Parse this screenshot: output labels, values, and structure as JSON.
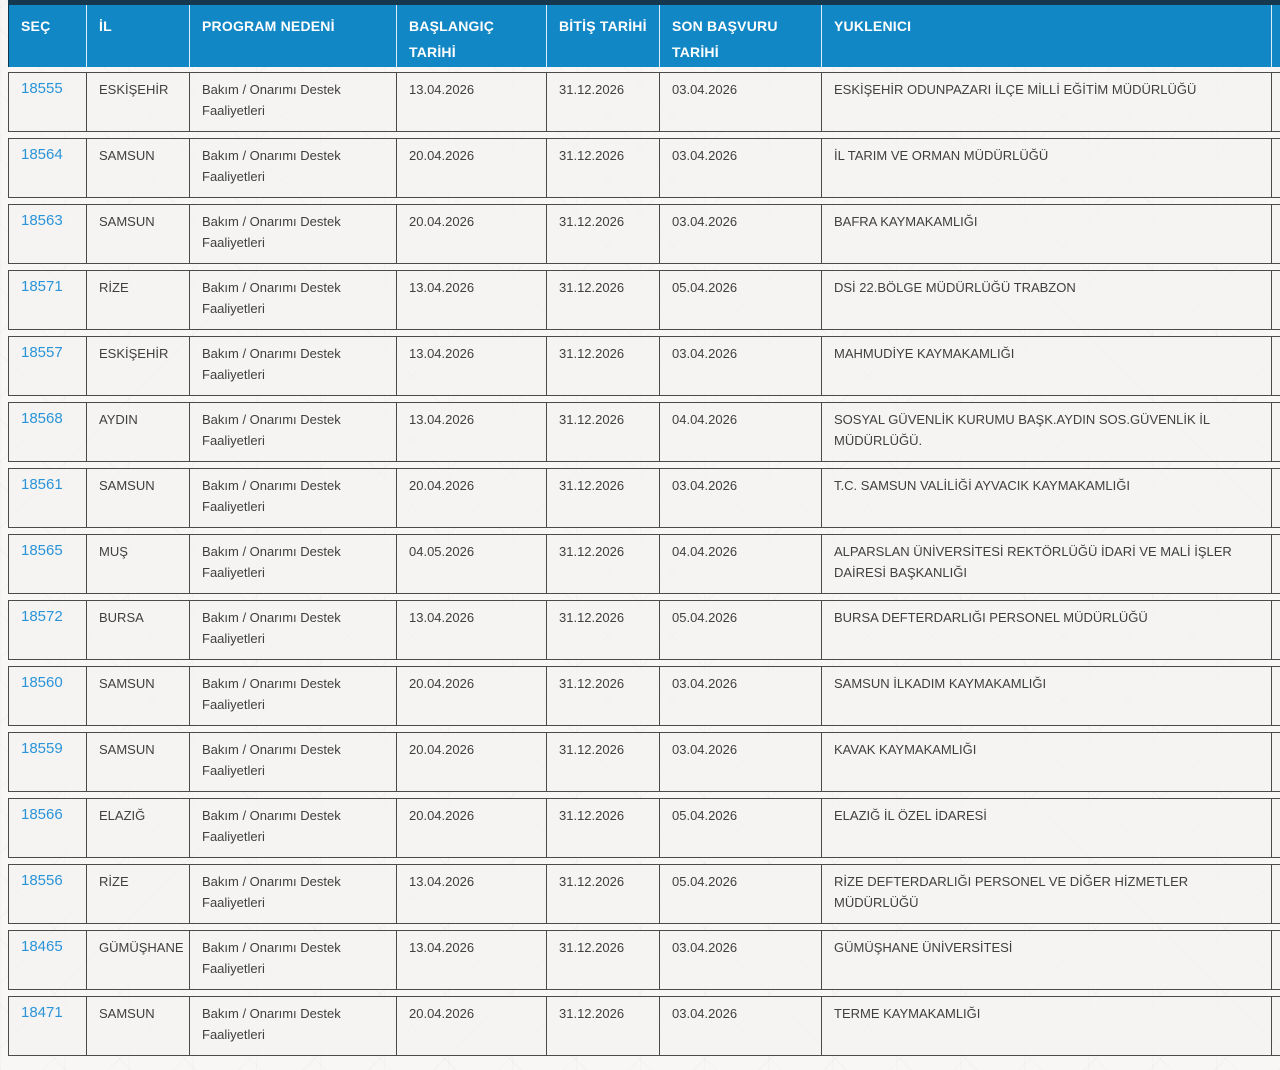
{
  "colors": {
    "header_bg": "#1287C5",
    "header_top_border": "#16384E",
    "header_text": "#FFFFFF",
    "row_border": "#4A4A4A",
    "row_bg": "#F4F3F1",
    "link_blue": "#2B94D8",
    "body_text": "#3F3F3F"
  },
  "table": {
    "columns": [
      {
        "key": "sec",
        "label": "SEÇ"
      },
      {
        "key": "il",
        "label": "İL"
      },
      {
        "key": "program",
        "label": "PROGRAM NEDENİ"
      },
      {
        "key": "baslangic",
        "label": "BAŞLANGIÇ TARİHİ"
      },
      {
        "key": "bitis",
        "label": "BİTİŞ TARİHİ"
      },
      {
        "key": "son_basvuru",
        "label": "SON BAŞVURU TARİHİ"
      },
      {
        "key": "yuklenici",
        "label": "YUKLENICI"
      }
    ],
    "rows": [
      {
        "id": "18555",
        "il": "ESKİŞEHİR",
        "program": "Bakım / Onarımı Destek Faaliyetleri",
        "baslangic": "13.04.2026",
        "bitis": "31.12.2026",
        "son_basvuru": "03.04.2026",
        "yuklenici": "ESKİŞEHİR ODUNPAZARI İLÇE MİLLİ EĞİTİM MÜDÜRLÜĞÜ"
      },
      {
        "id": "18564",
        "il": "SAMSUN",
        "program": "Bakım / Onarımı Destek Faaliyetleri",
        "baslangic": "20.04.2026",
        "bitis": "31.12.2026",
        "son_basvuru": "03.04.2026",
        "yuklenici": "İL TARIM VE ORMAN MÜDÜRLÜĞÜ"
      },
      {
        "id": "18563",
        "il": "SAMSUN",
        "program": "Bakım / Onarımı Destek Faaliyetleri",
        "baslangic": "20.04.2026",
        "bitis": "31.12.2026",
        "son_basvuru": "03.04.2026",
        "yuklenici": "BAFRA KAYMAKAMLIĞI"
      },
      {
        "id": "18571",
        "il": "RİZE",
        "program": "Bakım / Onarımı Destek Faaliyetleri",
        "baslangic": "13.04.2026",
        "bitis": "31.12.2026",
        "son_basvuru": "05.04.2026",
        "yuklenici": "DSİ 22.BÖLGE MÜDÜRLÜĞÜ TRABZON"
      },
      {
        "id": "18557",
        "il": "ESKİŞEHİR",
        "program": "Bakım / Onarımı Destek Faaliyetleri",
        "baslangic": "13.04.2026",
        "bitis": "31.12.2026",
        "son_basvuru": "03.04.2026",
        "yuklenici": "MAHMUDİYE KAYMAKAMLIĞI"
      },
      {
        "id": "18568",
        "il": "AYDIN",
        "program": "Bakım / Onarımı Destek Faaliyetleri",
        "baslangic": "13.04.2026",
        "bitis": "31.12.2026",
        "son_basvuru": "04.04.2026",
        "yuklenici": "SOSYAL GÜVENLİK KURUMU BAŞK.AYDIN SOS.GÜVENLİK İL MÜDÜRLÜĞÜ."
      },
      {
        "id": "18561",
        "il": "SAMSUN",
        "program": "Bakım / Onarımı Destek Faaliyetleri",
        "baslangic": "20.04.2026",
        "bitis": "31.12.2026",
        "son_basvuru": "03.04.2026",
        "yuklenici": "T.C. SAMSUN VALİLİĞİ AYVACIK KAYMAKAMLIĞI"
      },
      {
        "id": "18565",
        "il": "MUŞ",
        "program": "Bakım / Onarımı Destek Faaliyetleri",
        "baslangic": "04.05.2026",
        "bitis": "31.12.2026",
        "son_basvuru": "04.04.2026",
        "yuklenici": "ALPARSLAN ÜNİVERSİTESİ REKTÖRLÜĞÜ İDARİ VE MALİ İŞLER DAİRESİ BAŞKANLIĞI"
      },
      {
        "id": "18572",
        "il": "BURSA",
        "program": "Bakım / Onarımı Destek Faaliyetleri",
        "baslangic": "13.04.2026",
        "bitis": "31.12.2026",
        "son_basvuru": "05.04.2026",
        "yuklenici": "BURSA DEFTERDARLIĞI PERSONEL MÜDÜRLÜĞÜ"
      },
      {
        "id": "18560",
        "il": "SAMSUN",
        "program": "Bakım / Onarımı Destek Faaliyetleri",
        "baslangic": "20.04.2026",
        "bitis": "31.12.2026",
        "son_basvuru": "03.04.2026",
        "yuklenici": "SAMSUN İLKADIM KAYMAKAMLIĞI"
      },
      {
        "id": "18559",
        "il": "SAMSUN",
        "program": "Bakım / Onarımı Destek Faaliyetleri",
        "baslangic": "20.04.2026",
        "bitis": "31.12.2026",
        "son_basvuru": "03.04.2026",
        "yuklenici": "KAVAK KAYMAKAMLIĞI"
      },
      {
        "id": "18566",
        "il": "ELAZIĞ",
        "program": "Bakım / Onarımı Destek Faaliyetleri",
        "baslangic": "20.04.2026",
        "bitis": "31.12.2026",
        "son_basvuru": "05.04.2026",
        "yuklenici": "ELAZIĞ İL ÖZEL İDARESİ"
      },
      {
        "id": "18556",
        "il": "RİZE",
        "program": "Bakım / Onarımı Destek Faaliyetleri",
        "baslangic": "13.04.2026",
        "bitis": "31.12.2026",
        "son_basvuru": "05.04.2026",
        "yuklenici": "RİZE DEFTERDARLIĞI PERSONEL VE DİĞER HİZMETLER MÜDÜRLÜĞÜ"
      },
      {
        "id": "18465",
        "il": "GÜMÜŞHANE",
        "program": "Bakım / Onarımı Destek Faaliyetleri",
        "baslangic": "13.04.2026",
        "bitis": "31.12.2026",
        "son_basvuru": "03.04.2026",
        "yuklenici": "GÜMÜŞHANE ÜNİVERSİTESİ"
      },
      {
        "id": "18471",
        "il": "SAMSUN",
        "program": "Bakım / Onarımı Destek Faaliyetleri",
        "baslangic": "20.04.2026",
        "bitis": "31.12.2026",
        "son_basvuru": "03.04.2026",
        "yuklenici": "TERME KAYMAKAMLIĞI"
      }
    ]
  }
}
